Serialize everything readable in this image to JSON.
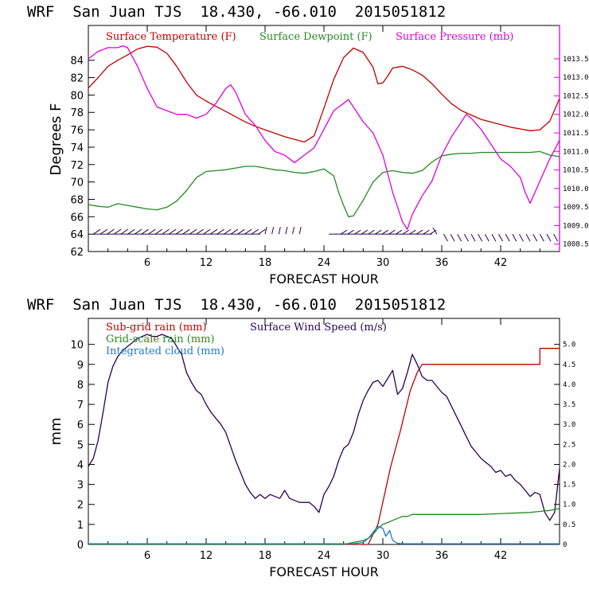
{
  "chart_data": [
    {
      "type": "line",
      "header": "WRF  San Juan TJS  18.430, -66.010  2015051812",
      "xlabel": "FORECAST HOUR",
      "ylabel": "Degrees F",
      "xlim": [
        0,
        48
      ],
      "ylim": [
        62,
        88
      ],
      "xticks": [
        "6",
        "12",
        "18",
        "24",
        "30",
        "36",
        "42"
      ],
      "yticks": [
        "62",
        "64",
        "66",
        "68",
        "70",
        "72",
        "74",
        "76",
        "78",
        "80",
        "82",
        "84"
      ],
      "y2lim": [
        1008.3,
        1014.4
      ],
      "y2ticks": [
        "1008.5",
        "1009.0",
        "1009.5",
        "1010.0",
        "1010.5",
        "1011.0",
        "1011.5",
        "1012.0",
        "1012.5",
        "1013.0",
        "1013.5"
      ],
      "colors": {
        "temp": "#c00000",
        "dew": "#228b22",
        "pres": "#dd00dd",
        "wind": "#2a0050"
      },
      "series": [
        {
          "name": "Surface Temperature (F)",
          "axis": "left",
          "x": [
            0,
            1,
            2,
            3,
            4,
            5,
            6,
            7,
            8,
            9,
            10,
            11,
            12,
            13,
            14,
            15,
            16,
            17,
            18,
            19,
            20,
            21,
            22,
            23,
            24,
            25,
            26,
            27,
            28,
            29,
            29.5,
            30,
            30.5,
            31,
            32,
            33,
            34,
            35,
            36,
            37,
            38,
            39,
            40,
            41,
            42,
            43,
            44,
            45,
            46,
            47,
            48
          ],
          "values": [
            80.8,
            82,
            83.3,
            84,
            84.6,
            85.3,
            85.6,
            85.5,
            84.8,
            83.3,
            81.5,
            80,
            79.3,
            78.7,
            78.1,
            77.5,
            76.9,
            76.4,
            76,
            75.6,
            75.2,
            74.9,
            74.6,
            75.3,
            78.5,
            81.8,
            84.3,
            85.4,
            84.9,
            83.2,
            81.3,
            81.4,
            82.2,
            83.1,
            83.3,
            82.9,
            82.3,
            81.3,
            80.1,
            79,
            78.2,
            77.7,
            77.2,
            76.9,
            76.6,
            76.3,
            76.1,
            75.9,
            76,
            77,
            79.6
          ]
        },
        {
          "name": "Surface Dewpoint (F)",
          "axis": "left",
          "x": [
            0,
            1,
            2,
            3,
            4,
            5,
            6,
            7,
            8,
            9,
            10,
            11,
            12,
            13,
            14,
            15,
            16,
            17,
            18,
            19,
            20,
            21,
            22,
            23,
            24,
            25,
            25.5,
            26,
            26.5,
            27,
            28,
            29,
            30,
            31,
            32,
            33,
            34,
            35,
            36,
            37,
            38,
            39,
            40,
            41,
            42,
            43,
            44,
            45,
            46,
            47,
            48
          ],
          "values": [
            67.4,
            67.2,
            67.1,
            67.5,
            67.3,
            67.1,
            66.9,
            66.8,
            67.1,
            67.8,
            69,
            70.5,
            71.2,
            71.3,
            71.4,
            71.6,
            71.8,
            71.8,
            71.6,
            71.4,
            71.3,
            71.1,
            71,
            71.2,
            71.5,
            70.7,
            68.8,
            67.3,
            66,
            66.1,
            67.9,
            70,
            71.1,
            71.3,
            71.1,
            71,
            71.3,
            72.3,
            73,
            73.2,
            73.3,
            73.3,
            73.4,
            73.4,
            73.4,
            73.4,
            73.4,
            73.4,
            73.5,
            73.1,
            72.9
          ]
        },
        {
          "name": "Surface Pressure (mb)",
          "axis": "right",
          "x": [
            0,
            1,
            2,
            3,
            3.5,
            4,
            5,
            6,
            7,
            8,
            9,
            10,
            11,
            12,
            13,
            14,
            14.5,
            15,
            16,
            17,
            18,
            19,
            20,
            21,
            22,
            23,
            24,
            25,
            26,
            26.5,
            27,
            28,
            29,
            30,
            31,
            31.5,
            32,
            32.5,
            33,
            34,
            35,
            36,
            37,
            38,
            38.5,
            39,
            40,
            41,
            42,
            43,
            44,
            44.5,
            45,
            46,
            47,
            48
          ],
          "values": [
            1013.5,
            1013.7,
            1013.8,
            1013.8,
            1013.85,
            1013.8,
            1013.3,
            1012.7,
            1012.2,
            1012.1,
            1012.0,
            1012.0,
            1011.9,
            1012.0,
            1012.3,
            1012.7,
            1012.8,
            1012.6,
            1012.0,
            1011.7,
            1011.3,
            1011.0,
            1010.9,
            1010.7,
            1010.9,
            1011.1,
            1011.6,
            1012.1,
            1012.3,
            1012.4,
            1012.2,
            1011.8,
            1011.5,
            1010.9,
            1009.9,
            1009.5,
            1009.1,
            1008.9,
            1009.3,
            1009.8,
            1010.2,
            1010.9,
            1011.4,
            1011.8,
            1012.0,
            1011.9,
            1011.6,
            1011.2,
            1010.8,
            1010.6,
            1010.3,
            1009.9,
            1009.6,
            1010.2,
            1010.8,
            1011.3
          ]
        }
      ],
      "legend": [
        "Surface Temperature (F)",
        "Surface Dewpoint (F)",
        "Surface Pressure (mb)"
      ],
      "wind_barb_y": 64
    },
    {
      "type": "line",
      "header": "WRF  San Juan TJS  18.430, -66.010  2015051812",
      "xlabel": "FORECAST HOUR",
      "ylabel": "mm",
      "xlim": [
        0,
        48
      ],
      "ylim": [
        0,
        11.3
      ],
      "xticks": [
        "6",
        "12",
        "18",
        "24",
        "30",
        "36",
        "42"
      ],
      "yticks": [
        "0",
        "1",
        "2",
        "3",
        "4",
        "5",
        "6",
        "7",
        "8",
        "9",
        "10"
      ],
      "y2lim": [
        0,
        5.65
      ],
      "y2ticks": [
        "0",
        "0.5",
        "1.0",
        "1.5",
        "2.0",
        "2.5",
        "3.0",
        "3.5",
        "4.0",
        "4.5",
        "5.0"
      ],
      "colors": {
        "subgrid": "#c00000",
        "grid": "#228b22",
        "cloud": "#1e78c8",
        "wind": "#2a0050"
      },
      "series": [
        {
          "name": "Sub-grid rain (mm)",
          "axis": "left",
          "x": [
            0,
            28.5,
            29.5,
            29.5,
            30.8,
            30.8,
            31.8,
            31.8,
            32.8,
            32.8,
            33.5,
            33.5,
            34,
            46,
            46,
            48
          ],
          "values": [
            0,
            0,
            1,
            1,
            3.9,
            3.9,
            5.7,
            5.7,
            7.7,
            7.7,
            8.6,
            8.6,
            9.0,
            9.0,
            9.8,
            9.8
          ]
        },
        {
          "name": "Surface Wind Speed (m/s)",
          "axis": "left",
          "x": [
            0,
            0.5,
            1,
            1.5,
            2,
            2.5,
            3,
            3.5,
            4,
            4.5,
            5,
            5.5,
            6,
            6.5,
            7,
            7.5,
            8,
            8.5,
            9,
            9.5,
            10,
            10.5,
            11,
            11.5,
            12,
            12.5,
            13,
            13.5,
            14,
            14.5,
            15,
            15.5,
            16,
            16.5,
            17,
            17.5,
            18,
            18.5,
            19,
            19.5,
            20,
            20.5,
            21,
            21.5,
            22,
            22.5,
            23,
            23.5,
            24,
            24.5,
            25,
            25.5,
            26,
            26.5,
            27,
            27.5,
            28,
            28.5,
            29,
            29.5,
            30,
            30.5,
            31,
            31.5,
            32,
            32.5,
            33,
            33.5,
            34,
            34.5,
            35,
            35.5,
            36,
            36.5,
            37,
            37.5,
            38,
            38.5,
            39,
            39.5,
            40,
            40.5,
            41,
            41.5,
            42,
            42.5,
            43,
            43.5,
            44,
            44.5,
            45,
            45.5,
            46,
            46.5,
            47,
            47.5,
            48
          ],
          "values": [
            3.9,
            4.3,
            5.2,
            6.6,
            8.1,
            8.9,
            9.4,
            9.7,
            9.9,
            10.1,
            10.3,
            10.4,
            10.5,
            10.4,
            10.4,
            10.5,
            10.4,
            10.3,
            9.9,
            9.5,
            8.6,
            8.1,
            7.7,
            7.5,
            7.0,
            6.6,
            6.3,
            6.0,
            5.6,
            4.9,
            4.2,
            3.6,
            3.0,
            2.6,
            2.3,
            2.5,
            2.3,
            2.5,
            2.4,
            2.3,
            2.7,
            2.3,
            2.2,
            2.1,
            2.1,
            2.1,
            1.9,
            1.6,
            2.5,
            2.9,
            3.4,
            4.2,
            4.8,
            5.0,
            5.6,
            6.5,
            7.2,
            7.7,
            8.1,
            8.2,
            7.9,
            8.3,
            8.7,
            7.5,
            7.8,
            8.6,
            9.5,
            9.0,
            8.4,
            8.2,
            8.2,
            7.9,
            7.6,
            7.4,
            6.9,
            6.4,
            5.9,
            5.4,
            4.9,
            4.6,
            4.3,
            4.1,
            3.9,
            3.6,
            3.7,
            3.4,
            3.5,
            3.2,
            3.0,
            2.7,
            2.4,
            2.6,
            2.5,
            1.6,
            1.2,
            1.6,
            3.8
          ]
        },
        {
          "name": "Grid-scale rain (mm)",
          "axis": "left",
          "x": [
            0,
            26,
            27,
            28,
            28.5,
            29,
            29.5,
            30,
            30.5,
            31,
            31.5,
            32,
            32.5,
            33,
            34,
            40,
            45,
            46,
            47,
            47.5,
            48
          ],
          "values": [
            0,
            0,
            0.1,
            0.2,
            0.3,
            0.5,
            0.8,
            1.0,
            1.1,
            1.2,
            1.3,
            1.4,
            1.4,
            1.5,
            1.5,
            1.5,
            1.6,
            1.65,
            1.7,
            1.75,
            1.8
          ]
        },
        {
          "name": "Integrated cloud (mm)",
          "axis": "left",
          "x": [
            0,
            27,
            28,
            28.5,
            29,
            29.5,
            30,
            30.3,
            30.7,
            31,
            31.5,
            32,
            48
          ],
          "values": [
            0.03,
            0.03,
            0.1,
            0.3,
            0.6,
            0.9,
            0.8,
            0.4,
            0.7,
            0.2,
            0.05,
            0.03,
            0.03
          ]
        }
      ],
      "legend": [
        "Sub-grid rain (mm)",
        "Surface Wind Speed (m/s)",
        "Grid-scale rain (mm)",
        "Integrated cloud (mm)"
      ]
    }
  ]
}
